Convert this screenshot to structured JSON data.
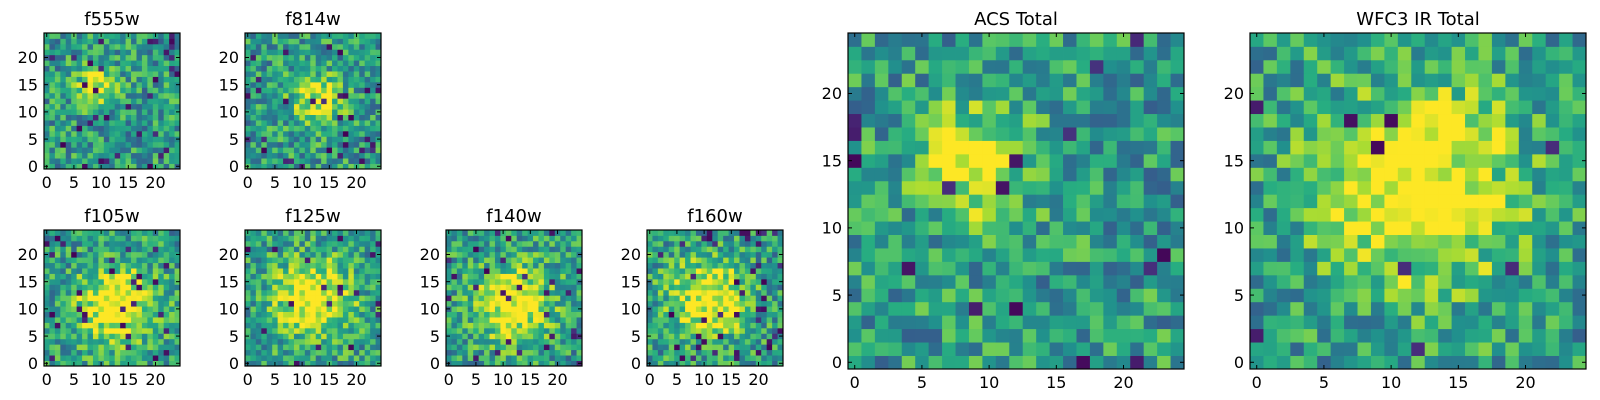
{
  "chart_data": [
    {
      "type": "heatmap",
      "title": "f555w",
      "xlim": [
        -0.5,
        24.5
      ],
      "ylim": [
        -0.5,
        24.5
      ],
      "xticks": [
        0,
        5,
        10,
        15,
        20
      ],
      "yticks": [
        0,
        5,
        10,
        15,
        20
      ],
      "xtick_labels": [
        "0",
        "5",
        "10",
        "15",
        "20"
      ],
      "ytick_labels": [
        "0",
        "5",
        "10",
        "15",
        "20"
      ],
      "grid_size": [
        25,
        25
      ],
      "colormap": "viridis",
      "peak": [
        9,
        15
      ],
      "peak_spread": 2.5,
      "contrast": 0.45,
      "dark_fraction": 0.05
    },
    {
      "type": "heatmap",
      "title": "f814w",
      "xlim": [
        -0.5,
        24.5
      ],
      "ylim": [
        -0.5,
        24.5
      ],
      "xticks": [
        0,
        5,
        10,
        15,
        20
      ],
      "yticks": [
        0,
        5,
        10,
        15,
        20
      ],
      "xtick_labels": [
        "0",
        "5",
        "10",
        "15",
        "20"
      ],
      "ytick_labels": [
        "0",
        "5",
        "10",
        "15",
        "20"
      ],
      "grid_size": [
        25,
        25
      ],
      "colormap": "viridis",
      "peak": [
        13,
        12
      ],
      "peak_spread": 3.5,
      "contrast": 0.4,
      "dark_fraction": 0.05
    },
    {
      "type": "heatmap",
      "title": "f105w",
      "xlim": [
        -0.5,
        24.5
      ],
      "ylim": [
        -0.5,
        24.5
      ],
      "xticks": [
        0,
        5,
        10,
        15,
        20
      ],
      "yticks": [
        0,
        5,
        10,
        15,
        20
      ],
      "xtick_labels": [
        "0",
        "5",
        "10",
        "15",
        "20"
      ],
      "ytick_labels": [
        "0",
        "5",
        "10",
        "15",
        "20"
      ],
      "grid_size": [
        25,
        25
      ],
      "colormap": "viridis",
      "peak": [
        13,
        11
      ],
      "peak_spread": 5,
      "contrast": 0.55,
      "dark_fraction": 0.04
    },
    {
      "type": "heatmap",
      "title": "f125w",
      "xlim": [
        -0.5,
        24.5
      ],
      "ylim": [
        -0.5,
        24.5
      ],
      "xticks": [
        0,
        5,
        10,
        15,
        20
      ],
      "yticks": [
        0,
        5,
        10,
        15,
        20
      ],
      "xtick_labels": [
        "0",
        "5",
        "10",
        "15",
        "20"
      ],
      "ytick_labels": [
        "0",
        "5",
        "10",
        "15",
        "20"
      ],
      "grid_size": [
        25,
        25
      ],
      "colormap": "viridis",
      "peak": [
        12,
        12
      ],
      "peak_spread": 5,
      "contrast": 0.55,
      "dark_fraction": 0.04
    },
    {
      "type": "heatmap",
      "title": "f140w",
      "xlim": [
        -0.5,
        24.5
      ],
      "ylim": [
        -0.5,
        24.5
      ],
      "xticks": [
        0,
        5,
        10,
        15,
        20
      ],
      "yticks": [
        0,
        5,
        10,
        15,
        20
      ],
      "xtick_labels": [
        "0",
        "5",
        "10",
        "15",
        "20"
      ],
      "ytick_labels": [
        "0",
        "5",
        "10",
        "15",
        "20"
      ],
      "grid_size": [
        25,
        25
      ],
      "colormap": "viridis",
      "peak": [
        12,
        11
      ],
      "peak_spread": 5,
      "contrast": 0.5,
      "dark_fraction": 0.05
    },
    {
      "type": "heatmap",
      "title": "f160w",
      "xlim": [
        -0.5,
        24.5
      ],
      "ylim": [
        -0.5,
        24.5
      ],
      "xticks": [
        0,
        5,
        10,
        15,
        20
      ],
      "yticks": [
        0,
        5,
        10,
        15,
        20
      ],
      "xtick_labels": [
        "0",
        "5",
        "10",
        "15",
        "20"
      ],
      "ytick_labels": [
        "0",
        "5",
        "10",
        "15",
        "20"
      ],
      "grid_size": [
        25,
        25
      ],
      "colormap": "viridis",
      "peak": [
        11,
        12
      ],
      "peak_spread": 5,
      "contrast": 0.5,
      "dark_fraction": 0.05
    },
    {
      "type": "heatmap",
      "title": "ACS Total",
      "xlim": [
        -0.5,
        24.5
      ],
      "ylim": [
        -0.5,
        24.5
      ],
      "xticks": [
        0,
        5,
        10,
        15,
        20
      ],
      "yticks": [
        0,
        5,
        10,
        15,
        20
      ],
      "xtick_labels": [
        "0",
        "5",
        "10",
        "15",
        "20"
      ],
      "ytick_labels": [
        "0",
        "5",
        "10",
        "15",
        "20"
      ],
      "grid_size": [
        25,
        25
      ],
      "colormap": "viridis",
      "peak": [
        9,
        15
      ],
      "peak_spread": 3,
      "contrast": 0.45,
      "dark_fraction": 0.04
    },
    {
      "type": "heatmap",
      "title": "WFC3 IR Total",
      "xlim": [
        -0.5,
        24.5
      ],
      "ylim": [
        -0.5,
        24.5
      ],
      "xticks": [
        0,
        5,
        10,
        15,
        20
      ],
      "yticks": [
        0,
        5,
        10,
        15,
        20
      ],
      "xtick_labels": [
        "0",
        "5",
        "10",
        "15",
        "20"
      ],
      "ytick_labels": [
        "0",
        "5",
        "10",
        "15",
        "20"
      ],
      "grid_size": [
        25,
        25
      ],
      "colormap": "viridis",
      "peak": [
        12,
        13
      ],
      "peak_spread": 5,
      "contrast": 0.6,
      "dark_fraction": 0.03
    }
  ]
}
